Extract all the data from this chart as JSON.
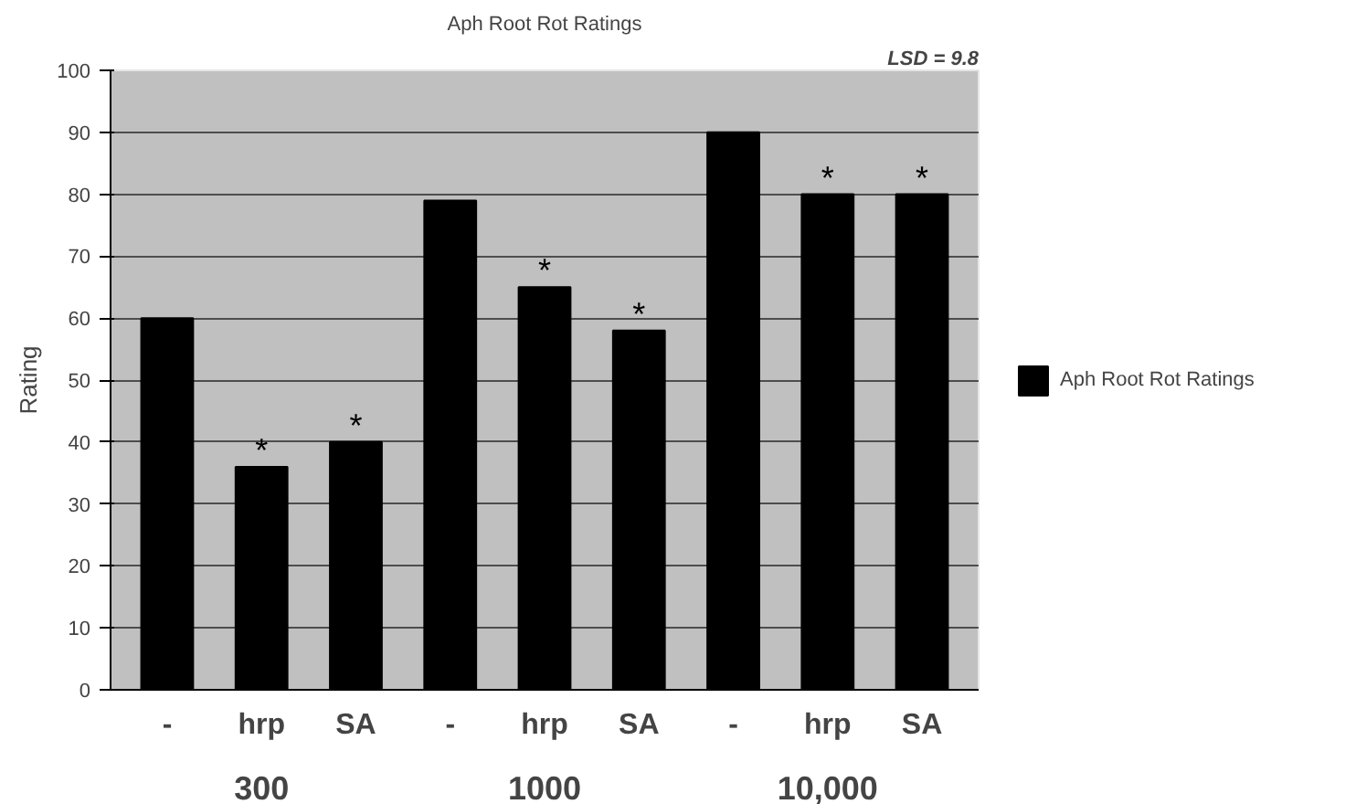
{
  "chart_data": {
    "type": "bar",
    "title": "Aph Root Rot Ratings",
    "ylabel": "Rating",
    "categories": [
      "-",
      "hrp",
      "SA",
      "-",
      "hrp",
      "SA",
      "-",
      "hrp",
      "SA"
    ],
    "series": [
      {
        "name": "Aph Root Rot Ratings",
        "color": "#000000",
        "values": [
          60,
          36,
          40,
          79,
          65,
          58,
          90,
          80,
          80
        ],
        "value_labels": [
          null,
          "*",
          "*",
          null,
          "*",
          "*",
          null,
          "*",
          "*"
        ]
      }
    ],
    "annotations": [
      "LSD = 9.8",
      "300",
      "1000",
      "10,000"
    ],
    "ylim": [
      0,
      100
    ],
    "yticks": [
      0,
      10,
      20,
      30,
      40,
      50,
      60,
      70,
      80,
      90,
      100
    ],
    "grid": "y",
    "legend": "right"
  }
}
